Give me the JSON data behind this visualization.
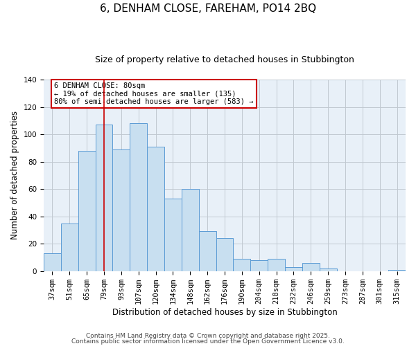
{
  "title": "6, DENHAM CLOSE, FAREHAM, PO14 2BQ",
  "subtitle": "Size of property relative to detached houses in Stubbington",
  "xlabel": "Distribution of detached houses by size in Stubbington",
  "ylabel": "Number of detached properties",
  "categories": [
    "37sqm",
    "51sqm",
    "65sqm",
    "79sqm",
    "93sqm",
    "107sqm",
    "120sqm",
    "134sqm",
    "148sqm",
    "162sqm",
    "176sqm",
    "190sqm",
    "204sqm",
    "218sqm",
    "232sqm",
    "246sqm",
    "259sqm",
    "273sqm",
    "287sqm",
    "301sqm",
    "315sqm"
  ],
  "values": [
    13,
    35,
    88,
    107,
    89,
    108,
    91,
    53,
    60,
    29,
    24,
    9,
    8,
    9,
    3,
    6,
    2,
    0,
    0,
    0,
    1
  ],
  "bar_color": "#c8dff0",
  "bar_edge_color": "#5b9bd5",
  "vline_x_index": 3,
  "vline_color": "#cc0000",
  "annotation_text": "6 DENHAM CLOSE: 80sqm\n← 19% of detached houses are smaller (135)\n80% of semi-detached houses are larger (583) →",
  "annotation_box_color": "#cc0000",
  "annotation_text_color": "#000000",
  "ylim": [
    0,
    140
  ],
  "yticks": [
    0,
    20,
    40,
    60,
    80,
    100,
    120,
    140
  ],
  "footer1": "Contains HM Land Registry data © Crown copyright and database right 2025.",
  "footer2": "Contains public sector information licensed under the Open Government Licence v3.0.",
  "background_color": "#ffffff",
  "plot_bg_color": "#e8f0f8",
  "grid_color": "#c0c8d0",
  "title_fontsize": 11,
  "subtitle_fontsize": 9,
  "label_fontsize": 8.5,
  "tick_fontsize": 7.5,
  "footer_fontsize": 6.5,
  "annotation_fontsize": 7.5
}
